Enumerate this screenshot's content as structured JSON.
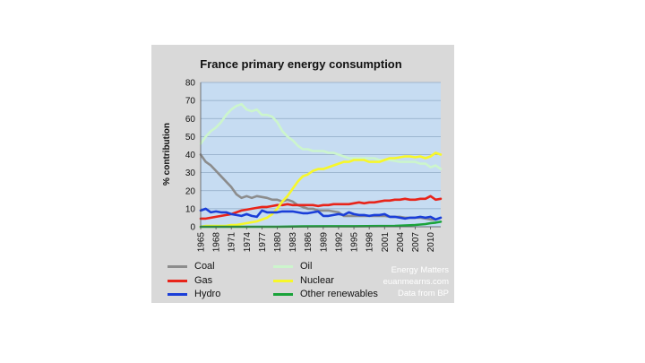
{
  "chart_data": {
    "type": "line",
    "title": "France primary energy consumption",
    "ylabel": "% contribution",
    "xlabel": "",
    "ylim": [
      0,
      80
    ],
    "yticks": [
      0,
      10,
      20,
      30,
      40,
      50,
      60,
      70,
      80
    ],
    "xlim": [
      1965,
      2012
    ],
    "xticks": [
      1965,
      1968,
      1971,
      1974,
      1977,
      1980,
      1983,
      1986,
      1989,
      1992,
      1995,
      1998,
      2001,
      2004,
      2007,
      2010
    ],
    "grid": true,
    "legend_position": "bottom",
    "series": [
      {
        "name": "Coal",
        "color": "#8c8c8c",
        "points": [
          [
            1965,
            40
          ],
          [
            1966,
            36
          ],
          [
            1967,
            34
          ],
          [
            1968,
            31
          ],
          [
            1969,
            28
          ],
          [
            1970,
            25
          ],
          [
            1971,
            22
          ],
          [
            1972,
            18
          ],
          [
            1973,
            16
          ],
          [
            1974,
            17
          ],
          [
            1975,
            16
          ],
          [
            1976,
            17
          ],
          [
            1977,
            16.5
          ],
          [
            1978,
            16
          ],
          [
            1979,
            15
          ],
          [
            1980,
            15
          ],
          [
            1981,
            14
          ],
          [
            1982,
            15
          ],
          [
            1983,
            14
          ],
          [
            1984,
            12
          ],
          [
            1985,
            11
          ],
          [
            1986,
            10
          ],
          [
            1987,
            10
          ],
          [
            1988,
            9
          ],
          [
            1989,
            9
          ],
          [
            1990,
            9
          ],
          [
            1991,
            8.5
          ],
          [
            1992,
            8
          ],
          [
            1993,
            6
          ],
          [
            1994,
            6
          ],
          [
            1995,
            6
          ],
          [
            1996,
            6
          ],
          [
            1997,
            6
          ],
          [
            1998,
            6
          ],
          [
            1999,
            6
          ],
          [
            2000,
            6
          ],
          [
            2001,
            6
          ],
          [
            2002,
            5.5
          ],
          [
            2003,
            5.5
          ],
          [
            2004,
            5.5
          ],
          [
            2005,
            5
          ],
          [
            2006,
            5
          ],
          [
            2007,
            5
          ],
          [
            2008,
            5
          ],
          [
            2009,
            4.5
          ],
          [
            2010,
            4
          ],
          [
            2011,
            4
          ]
        ]
      },
      {
        "name": "Oil",
        "color": "#ccf5cc",
        "points": [
          [
            1965,
            46
          ],
          [
            1966,
            50
          ],
          [
            1967,
            53
          ],
          [
            1968,
            55
          ],
          [
            1969,
            58
          ],
          [
            1970,
            62
          ],
          [
            1971,
            65
          ],
          [
            1972,
            67
          ],
          [
            1973,
            68
          ],
          [
            1974,
            65
          ],
          [
            1975,
            64
          ],
          [
            1976,
            65
          ],
          [
            1977,
            62
          ],
          [
            1978,
            62
          ],
          [
            1979,
            61
          ],
          [
            1980,
            58
          ],
          [
            1981,
            53
          ],
          [
            1982,
            50
          ],
          [
            1983,
            48
          ],
          [
            1984,
            45
          ],
          [
            1985,
            43
          ],
          [
            1986,
            43
          ],
          [
            1987,
            42
          ],
          [
            1988,
            42
          ],
          [
            1989,
            42
          ],
          [
            1990,
            41
          ],
          [
            1991,
            41
          ],
          [
            1992,
            40
          ],
          [
            1993,
            39
          ],
          [
            1994,
            38
          ],
          [
            1995,
            38
          ],
          [
            1996,
            38
          ],
          [
            1997,
            38
          ],
          [
            1998,
            38
          ],
          [
            1999,
            38
          ],
          [
            2000,
            37
          ],
          [
            2001,
            37
          ],
          [
            2002,
            37
          ],
          [
            2003,
            36.5
          ],
          [
            2004,
            36
          ],
          [
            2005,
            36
          ],
          [
            2006,
            36
          ],
          [
            2007,
            36
          ],
          [
            2008,
            35
          ],
          [
            2009,
            35
          ],
          [
            2010,
            33
          ],
          [
            2011,
            34
          ],
          [
            2012,
            32
          ]
        ]
      },
      {
        "name": "Gas",
        "color": "#e8241a",
        "points": [
          [
            1965,
            4.5
          ],
          [
            1966,
            4.5
          ],
          [
            1967,
            5
          ],
          [
            1968,
            5.5
          ],
          [
            1969,
            6
          ],
          [
            1970,
            6.5
          ],
          [
            1971,
            7
          ],
          [
            1972,
            8
          ],
          [
            1973,
            9
          ],
          [
            1974,
            9.5
          ],
          [
            1975,
            10
          ],
          [
            1976,
            10.5
          ],
          [
            1977,
            11
          ],
          [
            1978,
            11
          ],
          [
            1979,
            11.5
          ],
          [
            1980,
            12
          ],
          [
            1981,
            12
          ],
          [
            1982,
            12.5
          ],
          [
            1983,
            12
          ],
          [
            1984,
            12
          ],
          [
            1985,
            12
          ],
          [
            1986,
            12
          ],
          [
            1987,
            12
          ],
          [
            1988,
            11.5
          ],
          [
            1989,
            12
          ],
          [
            1990,
            12
          ],
          [
            1991,
            12.5
          ],
          [
            1992,
            12.5
          ],
          [
            1993,
            12.5
          ],
          [
            1994,
            12.5
          ],
          [
            1995,
            13
          ],
          [
            1996,
            13.5
          ],
          [
            1997,
            13
          ],
          [
            1998,
            13.5
          ],
          [
            1999,
            13.5
          ],
          [
            2000,
            14
          ],
          [
            2001,
            14.5
          ],
          [
            2002,
            14.5
          ],
          [
            2003,
            15
          ],
          [
            2004,
            15
          ],
          [
            2005,
            15.5
          ],
          [
            2006,
            15
          ],
          [
            2007,
            15
          ],
          [
            2008,
            15.5
          ],
          [
            2009,
            15.5
          ],
          [
            2010,
            17
          ],
          [
            2011,
            15
          ],
          [
            2012,
            15.5
          ]
        ]
      },
      {
        "name": "Nuclear",
        "color": "#f7f72a",
        "points": [
          [
            1965,
            0
          ],
          [
            1966,
            0.5
          ],
          [
            1967,
            0.5
          ],
          [
            1968,
            0.5
          ],
          [
            1969,
            0.5
          ],
          [
            1970,
            0.5
          ],
          [
            1971,
            1
          ],
          [
            1972,
            1
          ],
          [
            1973,
            1.5
          ],
          [
            1974,
            2
          ],
          [
            1975,
            2.5
          ],
          [
            1976,
            3
          ],
          [
            1977,
            4
          ],
          [
            1978,
            5
          ],
          [
            1979,
            7
          ],
          [
            1980,
            10
          ],
          [
            1981,
            14
          ],
          [
            1982,
            17
          ],
          [
            1983,
            21
          ],
          [
            1984,
            25
          ],
          [
            1985,
            28
          ],
          [
            1986,
            29
          ],
          [
            1987,
            31
          ],
          [
            1988,
            32
          ],
          [
            1989,
            32
          ],
          [
            1990,
            33
          ],
          [
            1991,
            34
          ],
          [
            1992,
            35
          ],
          [
            1993,
            36
          ],
          [
            1994,
            36
          ],
          [
            1995,
            37
          ],
          [
            1996,
            37
          ],
          [
            1997,
            37
          ],
          [
            1998,
            36
          ],
          [
            1999,
            36
          ],
          [
            2000,
            36
          ],
          [
            2001,
            37
          ],
          [
            2002,
            38
          ],
          [
            2003,
            38
          ],
          [
            2004,
            38.5
          ],
          [
            2005,
            39
          ],
          [
            2006,
            39
          ],
          [
            2007,
            38.5
          ],
          [
            2008,
            39
          ],
          [
            2009,
            38
          ],
          [
            2010,
            39
          ],
          [
            2011,
            41
          ],
          [
            2012,
            40
          ]
        ]
      },
      {
        "name": "Hydro",
        "color": "#1a3ed8",
        "points": [
          [
            1965,
            9
          ],
          [
            1966,
            10
          ],
          [
            1967,
            8
          ],
          [
            1968,
            8.5
          ],
          [
            1969,
            8
          ],
          [
            1970,
            8
          ],
          [
            1971,
            7
          ],
          [
            1972,
            6.5
          ],
          [
            1973,
            6
          ],
          [
            1974,
            7
          ],
          [
            1975,
            6
          ],
          [
            1976,
            5.5
          ],
          [
            1977,
            9
          ],
          [
            1978,
            8
          ],
          [
            1979,
            8
          ],
          [
            1980,
            8
          ],
          [
            1981,
            8.5
          ],
          [
            1982,
            8.5
          ],
          [
            1983,
            8.5
          ],
          [
            1984,
            8
          ],
          [
            1985,
            7.5
          ],
          [
            1986,
            7.5
          ],
          [
            1987,
            8
          ],
          [
            1988,
            8.5
          ],
          [
            1989,
            6
          ],
          [
            1990,
            6
          ],
          [
            1991,
            6.5
          ],
          [
            1992,
            7
          ],
          [
            1993,
            6.5
          ],
          [
            1994,
            8
          ],
          [
            1995,
            7
          ],
          [
            1996,
            6.5
          ],
          [
            1997,
            6.5
          ],
          [
            1998,
            6
          ],
          [
            1999,
            6.5
          ],
          [
            2000,
            6.5
          ],
          [
            2001,
            7
          ],
          [
            2002,
            5.5
          ],
          [
            2003,
            5.5
          ],
          [
            2004,
            5
          ],
          [
            2005,
            4.5
          ],
          [
            2006,
            5
          ],
          [
            2007,
            5
          ],
          [
            2008,
            5.5
          ],
          [
            2009,
            5
          ],
          [
            2010,
            5.5
          ],
          [
            2011,
            4
          ],
          [
            2012,
            5
          ]
        ]
      },
      {
        "name": "Other renewables",
        "color": "#1aa33a",
        "points": [
          [
            1965,
            0
          ],
          [
            1970,
            0
          ],
          [
            1975,
            0
          ],
          [
            1980,
            0
          ],
          [
            1985,
            0.2
          ],
          [
            1990,
            0.3
          ],
          [
            1995,
            0.3
          ],
          [
            2000,
            0.4
          ],
          [
            2003,
            0.5
          ],
          [
            2005,
            0.7
          ],
          [
            2007,
            1
          ],
          [
            2009,
            1.5
          ],
          [
            2010,
            2
          ],
          [
            2011,
            2.3
          ],
          [
            2012,
            2.8
          ]
        ]
      }
    ]
  },
  "credits": [
    "Energy Matters",
    "euanmearns.com",
    "Data from BP"
  ]
}
